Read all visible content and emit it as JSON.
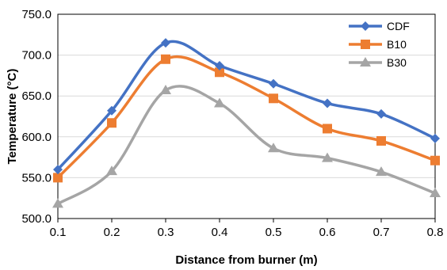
{
  "chart_data": {
    "type": "line",
    "title": "",
    "xlabel": "Distance from burner (m)",
    "ylabel": "Temperature (°C)",
    "x": [
      0.1,
      0.2,
      0.3,
      0.4,
      0.5,
      0.6,
      0.7,
      0.8
    ],
    "x_tick_labels": [
      "0.1",
      "0.2",
      "0.3",
      "0.4",
      "0.5",
      "0.6",
      "0.7",
      "0.8"
    ],
    "ylim": [
      500,
      750
    ],
    "y_ticks": [
      500,
      550,
      600,
      650,
      700,
      750
    ],
    "y_tick_labels": [
      "500.0",
      "550.0",
      "600.0",
      "650.0",
      "700.0",
      "750.0"
    ],
    "grid": "horizontal",
    "legend_position": "top-right",
    "smooth": true,
    "series": [
      {
        "name": "CDF",
        "color": "#4472C4",
        "marker": "diamond",
        "values": [
          560,
          632,
          715,
          687,
          665,
          641,
          628,
          598
        ]
      },
      {
        "name": "B10",
        "color": "#ED7D31",
        "marker": "square",
        "values": [
          550,
          617,
          695,
          679,
          647,
          610,
          595,
          571
        ]
      },
      {
        "name": "B30",
        "color": "#A5A5A5",
        "marker": "triangle",
        "values": [
          518,
          558,
          657,
          641,
          586,
          574,
          557,
          531
        ]
      }
    ]
  }
}
